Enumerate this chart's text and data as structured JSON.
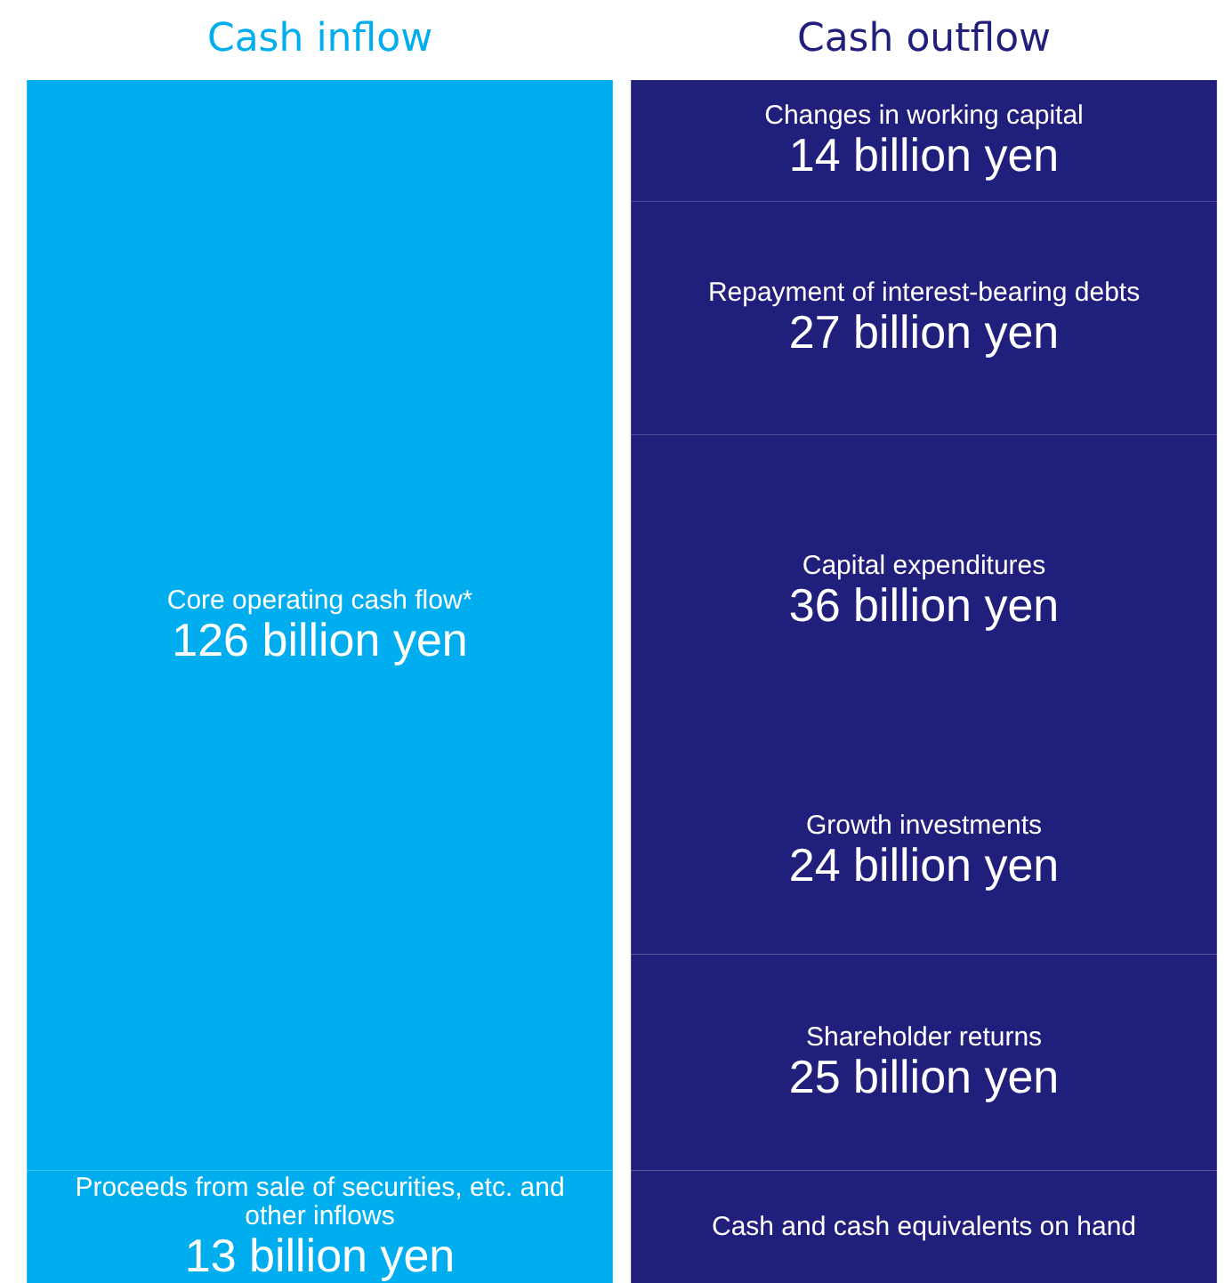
{
  "chart_data": {
    "type": "bar",
    "stacked": true,
    "categories": [
      "Cash inflow",
      "Cash outflow"
    ],
    "series": [
      {
        "name": "Proceeds from sale of securities, etc. and other inflows",
        "color": "#00aeef",
        "values": [
          13,
          null
        ],
        "value_labels": [
          "13 billion yen",
          null
        ]
      },
      {
        "name": "Core operating cash flow*",
        "color": "#00aeef",
        "values": [
          126,
          null
        ],
        "value_labels": [
          "126 billion yen",
          null
        ]
      },
      {
        "name": "Cash and cash equivalents on hand",
        "color": "#211f7c",
        "values": [
          null,
          13
        ],
        "value_labels": [
          null,
          null
        ]
      },
      {
        "name": "Shareholder returns",
        "color": "#211f7c",
        "values": [
          null,
          25
        ],
        "value_labels": [
          null,
          "25 billion yen"
        ]
      },
      {
        "name": "Growth investments",
        "color": "#211f7c",
        "values": [
          null,
          24
        ],
        "value_labels": [
          null,
          "24 billion yen"
        ]
      },
      {
        "name": "Capital expenditures",
        "color": "#211f7c",
        "values": [
          null,
          36
        ],
        "value_labels": [
          null,
          "36 billion yen"
        ]
      },
      {
        "name": "Repayment of interest-bearing debts",
        "color": "#211f7c",
        "values": [
          null,
          27
        ],
        "value_labels": [
          null,
          "27 billion yen"
        ]
      },
      {
        "name": "Changes in working capital",
        "color": "#211f7c",
        "values": [
          null,
          14
        ],
        "value_labels": [
          null,
          "14 billion yen"
        ]
      }
    ]
  }
}
